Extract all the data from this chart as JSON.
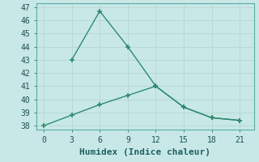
{
  "line1_x": [
    3,
    6,
    9,
    12,
    15,
    18,
    21
  ],
  "line1_y": [
    43,
    46.7,
    44,
    41,
    39.4,
    38.6,
    38.4
  ],
  "line2_x": [
    0,
    3,
    6,
    9,
    12,
    15,
    18,
    21
  ],
  "line2_y": [
    38,
    38.8,
    39.6,
    40.3,
    41,
    39.4,
    38.6,
    38.4
  ],
  "line_color": "#2E8B6E",
  "bg_color": "#C8E8E8",
  "grid_color": "#B8D8D0",
  "xlabel": "Humidex (Indice chaleur)",
  "xlabel_fontsize": 8,
  "xticks": [
    0,
    3,
    6,
    9,
    12,
    15,
    18,
    21
  ],
  "yticks": [
    38,
    39,
    40,
    41,
    42,
    43,
    44,
    45,
    46,
    47
  ],
  "ylim": [
    37.7,
    47.3
  ],
  "xlim": [
    -0.8,
    22.5
  ]
}
